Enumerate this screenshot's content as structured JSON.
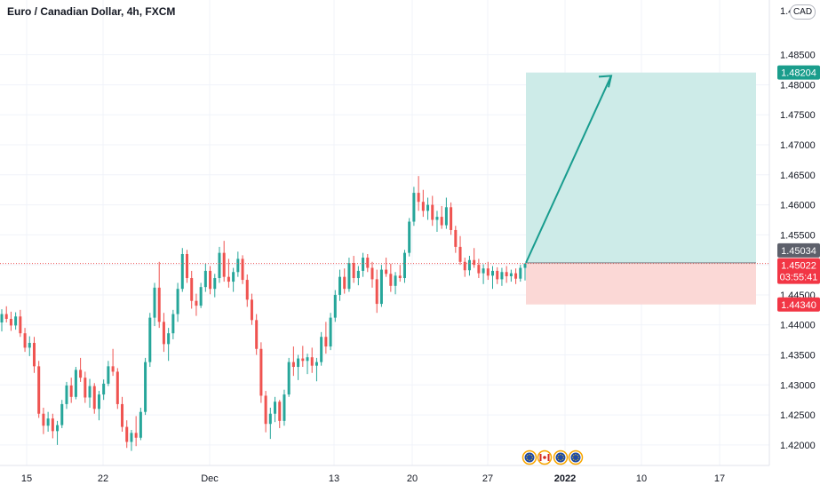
{
  "header": {
    "title": "Euro / Canadian Dollar, 4h, FXCM",
    "currency_badge": "CAD",
    "top_tick_fragment": "1.4"
  },
  "chart_data": {
    "type": "candlestick",
    "title": "Euro / Canadian Dollar, 4h, FXCM",
    "symbol": "EURCAD",
    "timeframe": "4h",
    "source": "FXCM",
    "currency": "CAD",
    "ylim": [
      1.4185,
      1.4925
    ],
    "y_ticks": [
      "1.42000",
      "1.42500",
      "1.43000",
      "1.43500",
      "1.44000",
      "1.44500",
      "1.45000",
      "1.45500",
      "1.46000",
      "1.46500",
      "1.47000",
      "1.47500",
      "1.48000",
      "1.48500"
    ],
    "x_ticks": [
      "15",
      "22",
      "Dec",
      "13",
      "20",
      "27",
      "2022",
      "10",
      "17"
    ],
    "grid": true,
    "candles": [
      [
        1.4404,
        1.4426,
        1.4389,
        1.4418
      ],
      [
        1.4418,
        1.4431,
        1.4404,
        1.441
      ],
      [
        1.441,
        1.4422,
        1.439,
        1.4399
      ],
      [
        1.4399,
        1.4421,
        1.4392,
        1.4414
      ],
      [
        1.4414,
        1.4425,
        1.438,
        1.4386
      ],
      [
        1.4386,
        1.4395,
        1.4355,
        1.4362
      ],
      [
        1.4362,
        1.4381,
        1.4348,
        1.437
      ],
      [
        1.437,
        1.438,
        1.432,
        1.4331
      ],
      [
        1.4331,
        1.434,
        1.4245,
        1.4252
      ],
      [
        1.4252,
        1.4262,
        1.4218,
        1.4232
      ],
      [
        1.4232,
        1.4255,
        1.4222,
        1.4244
      ],
      [
        1.4244,
        1.4252,
        1.4211,
        1.4223
      ],
      [
        1.4223,
        1.424,
        1.42,
        1.4233
      ],
      [
        1.4233,
        1.4275,
        1.4228,
        1.4268
      ],
      [
        1.4268,
        1.4305,
        1.426,
        1.4299
      ],
      [
        1.4299,
        1.4312,
        1.427,
        1.428
      ],
      [
        1.428,
        1.433,
        1.4276,
        1.4325
      ],
      [
        1.4325,
        1.4345,
        1.4305,
        1.4312
      ],
      [
        1.4312,
        1.4322,
        1.427,
        1.4279
      ],
      [
        1.4279,
        1.431,
        1.4262,
        1.4298
      ],
      [
        1.4298,
        1.4303,
        1.4252,
        1.426
      ],
      [
        1.426,
        1.429,
        1.4241,
        1.4284
      ],
      [
        1.4284,
        1.4309,
        1.4275,
        1.4302
      ],
      [
        1.4302,
        1.434,
        1.4298,
        1.4331
      ],
      [
        1.4331,
        1.436,
        1.4315,
        1.4322
      ],
      [
        1.4322,
        1.4328,
        1.426,
        1.4268
      ],
      [
        1.4268,
        1.428,
        1.4222,
        1.423
      ],
      [
        1.423,
        1.4241,
        1.4195,
        1.4205
      ],
      [
        1.4205,
        1.4225,
        1.419,
        1.422
      ],
      [
        1.422,
        1.4248,
        1.4198,
        1.4212
      ],
      [
        1.4212,
        1.4262,
        1.4208,
        1.4255
      ],
      [
        1.4255,
        1.4345,
        1.425,
        1.4338
      ],
      [
        1.4338,
        1.442,
        1.433,
        1.4412
      ],
      [
        1.4412,
        1.447,
        1.4398,
        1.4462
      ],
      [
        1.4462,
        1.4505,
        1.4395,
        1.4405
      ],
      [
        1.4405,
        1.442,
        1.4355,
        1.4368
      ],
      [
        1.4368,
        1.4395,
        1.434,
        1.4386
      ],
      [
        1.4386,
        1.4425,
        1.4376,
        1.4418
      ],
      [
        1.4418,
        1.447,
        1.4405,
        1.446
      ],
      [
        1.446,
        1.4528,
        1.4455,
        1.4518
      ],
      [
        1.4518,
        1.4525,
        1.447,
        1.4478
      ],
      [
        1.4478,
        1.449,
        1.4427,
        1.444
      ],
      [
        1.444,
        1.4452,
        1.4415,
        1.4432
      ],
      [
        1.4432,
        1.447,
        1.4428,
        1.4463
      ],
      [
        1.4463,
        1.4502,
        1.4455,
        1.449
      ],
      [
        1.449,
        1.4498,
        1.4451,
        1.446
      ],
      [
        1.446,
        1.4485,
        1.4446,
        1.4478
      ],
      [
        1.4478,
        1.453,
        1.447,
        1.452
      ],
      [
        1.452,
        1.454,
        1.4472,
        1.448
      ],
      [
        1.448,
        1.451,
        1.4462,
        1.4472
      ],
      [
        1.4472,
        1.4495,
        1.4455,
        1.4488
      ],
      [
        1.4488,
        1.4522,
        1.448,
        1.451
      ],
      [
        1.451,
        1.4516,
        1.4468,
        1.4475
      ],
      [
        1.4475,
        1.4484,
        1.443,
        1.4442
      ],
      [
        1.4442,
        1.4452,
        1.44,
        1.4408
      ],
      [
        1.4408,
        1.4418,
        1.435,
        1.436
      ],
      [
        1.436,
        1.4371,
        1.427,
        1.4282
      ],
      [
        1.4282,
        1.429,
        1.4221,
        1.4235
      ],
      [
        1.4235,
        1.4262,
        1.421,
        1.4252
      ],
      [
        1.4252,
        1.428,
        1.4238,
        1.4272
      ],
      [
        1.4272,
        1.4275,
        1.4228,
        1.424
      ],
      [
        1.424,
        1.4292,
        1.4232,
        1.4284
      ],
      [
        1.4284,
        1.4345,
        1.428,
        1.4338
      ],
      [
        1.4338,
        1.4364,
        1.4315,
        1.433
      ],
      [
        1.433,
        1.435,
        1.4308,
        1.4344
      ],
      [
        1.4344,
        1.4365,
        1.433,
        1.434
      ],
      [
        1.434,
        1.4352,
        1.4318,
        1.4346
      ],
      [
        1.4346,
        1.4362,
        1.432,
        1.4332
      ],
      [
        1.4332,
        1.4345,
        1.4306,
        1.4338
      ],
      [
        1.4338,
        1.4388,
        1.4332,
        1.438
      ],
      [
        1.438,
        1.4405,
        1.4352,
        1.4364
      ],
      [
        1.4364,
        1.442,
        1.4358,
        1.4412
      ],
      [
        1.4412,
        1.4458,
        1.4405,
        1.445
      ],
      [
        1.445,
        1.4492,
        1.444,
        1.448
      ],
      [
        1.448,
        1.4494,
        1.4452,
        1.446
      ],
      [
        1.446,
        1.4512,
        1.4455,
        1.4503
      ],
      [
        1.4503,
        1.4515,
        1.447,
        1.4478
      ],
      [
        1.4478,
        1.4498,
        1.4466,
        1.449
      ],
      [
        1.449,
        1.452,
        1.448,
        1.4512
      ],
      [
        1.4512,
        1.4518,
        1.4488,
        1.4495
      ],
      [
        1.4495,
        1.4505,
        1.4462,
        1.4476
      ],
      [
        1.4476,
        1.4492,
        1.442,
        1.4435
      ],
      [
        1.4435,
        1.45,
        1.443,
        1.4492
      ],
      [
        1.4492,
        1.4512,
        1.448,
        1.4485
      ],
      [
        1.4485,
        1.4502,
        1.4455,
        1.4465
      ],
      [
        1.4465,
        1.4488,
        1.4451,
        1.4482
      ],
      [
        1.4482,
        1.45,
        1.4472,
        1.4478
      ],
      [
        1.4478,
        1.4525,
        1.447,
        1.452
      ],
      [
        1.452,
        1.4578,
        1.4514,
        1.4572
      ],
      [
        1.4572,
        1.463,
        1.4565,
        1.462
      ],
      [
        1.462,
        1.4648,
        1.459,
        1.4605
      ],
      [
        1.4605,
        1.4625,
        1.458,
        1.459
      ],
      [
        1.459,
        1.4612,
        1.4575,
        1.46
      ],
      [
        1.46,
        1.4615,
        1.4565,
        1.4575
      ],
      [
        1.4575,
        1.459,
        1.4555,
        1.458
      ],
      [
        1.458,
        1.4598,
        1.456,
        1.4566
      ],
      [
        1.4566,
        1.4612,
        1.456,
        1.4596
      ],
      [
        1.4596,
        1.4604,
        1.455,
        1.4558
      ],
      [
        1.4558,
        1.4565,
        1.452,
        1.453
      ],
      [
        1.453,
        1.4548,
        1.45,
        1.4505
      ],
      [
        1.4505,
        1.4512,
        1.448,
        1.4491
      ],
      [
        1.4491,
        1.4515,
        1.4482,
        1.4508
      ],
      [
        1.4508,
        1.4528,
        1.4495,
        1.45
      ],
      [
        1.45,
        1.451,
        1.4478,
        1.4486
      ],
      [
        1.4486,
        1.4501,
        1.4468,
        1.4494
      ],
      [
        1.4494,
        1.4505,
        1.4475,
        1.4482
      ],
      [
        1.4482,
        1.4498,
        1.446,
        1.449
      ],
      [
        1.449,
        1.4496,
        1.4468,
        1.4476
      ],
      [
        1.4476,
        1.4495,
        1.4465,
        1.4488
      ],
      [
        1.4488,
        1.4498,
        1.447,
        1.4481
      ],
      [
        1.4481,
        1.4492,
        1.4472,
        1.4486
      ],
      [
        1.4486,
        1.4494,
        1.4468,
        1.4477
      ],
      [
        1.4477,
        1.45,
        1.4472,
        1.4495
      ],
      [
        1.4495,
        1.4503,
        1.4474,
        1.4502
      ]
    ],
    "last_price": "1.45022",
    "countdown": "03:55:41",
    "position": {
      "type": "long",
      "entry": 1.45034,
      "target": 1.48204,
      "stop": 1.4434,
      "entry_label": "1.45034",
      "target_label": "1.48204",
      "stop_label": "1.44340"
    },
    "colors": {
      "up": "#26a69a",
      "down": "#ef5350",
      "profit_zone": "#cdebe8",
      "loss_zone": "#fbd8d6",
      "arrow": "#189c8e",
      "target_label_bg": "#1a9d8c",
      "stop_label_bg": "#f23645",
      "entry_label_bg": "#5d606b",
      "grid": "#f0f3fa"
    },
    "events_icons": [
      "flag-eu-icon",
      "flag-ca-icon",
      "flag-eu-icon",
      "flag-eu-icon"
    ]
  }
}
